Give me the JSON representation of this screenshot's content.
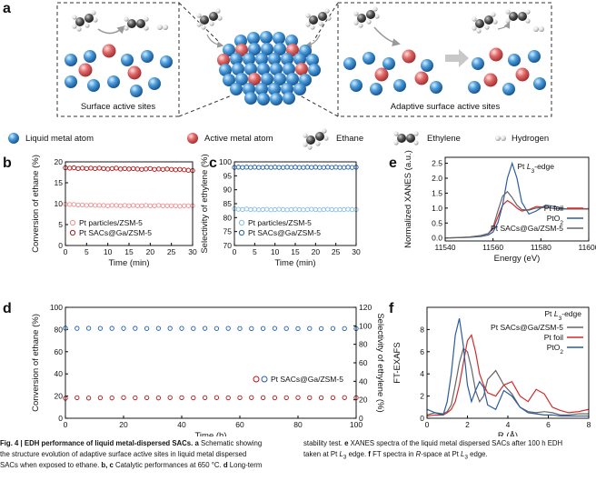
{
  "panel_a": {
    "label": "a",
    "left_box": "Surface active sites",
    "right_box": "Adaptive surface active sites",
    "legend": [
      "Liquid metal atom",
      "Active metal atom",
      "Ethane",
      "Ethylene",
      "Hydrogen"
    ]
  },
  "chart_data": [
    {
      "type": "scatter",
      "label": "b",
      "x_label": "Time (min)",
      "y_label": "Conversion of ethane (%)",
      "x": [
        0,
        1,
        2,
        3,
        4,
        5,
        6,
        7,
        8,
        9,
        10,
        11,
        12,
        13,
        14,
        15,
        16,
        17,
        18,
        19,
        20,
        21,
        22,
        23,
        24,
        25,
        26,
        27,
        28,
        29,
        30
      ],
      "xlim": [
        0,
        30
      ],
      "xticks": [
        0,
        5,
        10,
        15,
        20,
        25,
        30
      ],
      "ylim": [
        0,
        20
      ],
      "yticks": [
        0,
        5,
        10,
        15,
        20
      ],
      "legend": "lower left",
      "series": [
        {
          "name": "Pt particles/ZSM-5",
          "color": "#f08f8f",
          "values": [
            9.9,
            9.8,
            9.8,
            9.7,
            9.7,
            9.6,
            9.7,
            9.6,
            9.6,
            9.6,
            9.5,
            9.6,
            9.6,
            9.5,
            9.6,
            9.5,
            9.6,
            9.5,
            9.5,
            9.6,
            9.5,
            9.5,
            9.6,
            9.5,
            9.5,
            9.5,
            9.5,
            9.4,
            9.5,
            9.5,
            9.5
          ]
        },
        {
          "name": "Pt SACs@Ga/ZSM-5",
          "color": "#b81414",
          "values": [
            18.6,
            18.5,
            18.6,
            18.4,
            18.5,
            18.4,
            18.5,
            18.4,
            18.5,
            18.4,
            18.3,
            18.4,
            18.5,
            18.3,
            18.4,
            18.3,
            18.4,
            18.3,
            18.2,
            18.3,
            18.4,
            18.2,
            18.3,
            18.2,
            18.3,
            18.2,
            18.1,
            18.2,
            18.1,
            18.0,
            17.9
          ]
        }
      ]
    },
    {
      "type": "scatter",
      "label": "c",
      "x_label": "Time (min)",
      "y_label": "Selectivity of ethylene (%)",
      "x": [
        0,
        1,
        2,
        3,
        4,
        5,
        6,
        7,
        8,
        9,
        10,
        11,
        12,
        13,
        14,
        15,
        16,
        17,
        18,
        19,
        20,
        21,
        22,
        23,
        24,
        25,
        26,
        27,
        28,
        29,
        30
      ],
      "xlim": [
        0,
        30
      ],
      "xticks": [
        0,
        5,
        10,
        15,
        20,
        25,
        30
      ],
      "ylim": [
        70,
        100
      ],
      "yticks": [
        70,
        75,
        80,
        85,
        90,
        95,
        100
      ],
      "legend": "lower left",
      "series": [
        {
          "name": "Pt particles/ZSM-5",
          "color": "#86bde3",
          "values": [
            83.2,
            83.0,
            82.9,
            83.1,
            82.9,
            83.0,
            82.8,
            82.9,
            83.0,
            82.8,
            82.9,
            83.0,
            82.9,
            82.8,
            82.9,
            83.0,
            82.9,
            82.8,
            82.9,
            83.0,
            82.9,
            82.8,
            82.9,
            83.0,
            82.9,
            82.8,
            82.9,
            82.9,
            83.0,
            82.9,
            82.9
          ]
        },
        {
          "name": "Pt SACs@Ga/ZSM-5",
          "color": "#1f5fa8",
          "values": [
            98.0,
            98.1,
            98.0,
            98.1,
            98.0,
            98.1,
            98.0,
            98.0,
            98.1,
            98.0,
            98.1,
            98.0,
            98.0,
            98.1,
            98.0,
            98.1,
            98.0,
            98.0,
            98.1,
            98.0,
            98.1,
            98.0,
            98.0,
            98.1,
            98.0,
            98.1,
            98.0,
            98.0,
            98.1,
            98.0,
            98.1
          ]
        }
      ]
    },
    {
      "type": "line",
      "label": "e",
      "x_label": "Energy (eV)",
      "y_label": "Normalized XANES (a.u.)",
      "annotation": [
        "Pt",
        "L",
        "3",
        "-edge"
      ],
      "x": [
        11540,
        11545,
        11550,
        11555,
        11558,
        11560,
        11562,
        11564,
        11566,
        11568,
        11570,
        11572,
        11575,
        11578,
        11582,
        11586,
        11590,
        11595,
        11600
      ],
      "xlim": [
        11540,
        11600
      ],
      "xticks": [
        11540,
        11560,
        11580,
        11600
      ],
      "ylim": [
        -0.1,
        2.7
      ],
      "yticks": [
        {
          "value": 0,
          "label": "0.0"
        },
        0.5,
        {
          "value": 1,
          "label": "1.0"
        },
        1.5,
        {
          "value": 2,
          "label": "2.0"
        },
        2.5
      ],
      "legend": "lower right",
      "series": [
        {
          "name": "Pt foil",
          "color": "#d42a2a",
          "values": [
            0,
            0.01,
            0.03,
            0.08,
            0.15,
            0.3,
            0.7,
            1.1,
            1.25,
            1.15,
            1.0,
            0.9,
            0.95,
            1.05,
            1.03,
            0.98,
            0.97,
            0.98,
            0.98
          ]
        },
        {
          "name": "PtO2",
          "color": "#2b5c9e",
          "values": [
            0,
            0.01,
            0.02,
            0.05,
            0.1,
            0.2,
            0.5,
            1.1,
            2.0,
            2.5,
            2.0,
            1.2,
            0.8,
            0.9,
            1.1,
            1.05,
            0.98,
            0.97,
            0.97
          ]
        },
        {
          "name": "Pt SACs@Ga/ZSM-5",
          "color": "#666666",
          "values": [
            0,
            0.01,
            0.03,
            0.08,
            0.15,
            0.35,
            0.9,
            1.4,
            1.55,
            1.35,
            1.1,
            0.95,
            0.93,
            1.0,
            1.02,
            0.98,
            0.97,
            0.97,
            0.97
          ]
        }
      ]
    },
    {
      "type": "scatter",
      "label": "d",
      "x_label": "Time (h)",
      "y_label": "Conversion of ethane (%)",
      "y2_label": "Selectivity of ethylene (%)",
      "x": [
        0,
        4,
        8,
        12,
        16,
        20,
        24,
        28,
        32,
        36,
        40,
        44,
        48,
        52,
        56,
        60,
        64,
        68,
        72,
        76,
        80,
        84,
        88,
        92,
        96,
        100
      ],
      "xlim": [
        0,
        100
      ],
      "xticks": [
        0,
        20,
        40,
        60,
        80,
        100
      ],
      "ylim": [
        0,
        100
      ],
      "yticks": [
        0,
        20,
        40,
        60,
        80,
        100
      ],
      "y2lim": [
        0,
        120
      ],
      "y2ticks": [
        0,
        20,
        40,
        60,
        80,
        100,
        120
      ],
      "legend": "center right",
      "legend_label": "Pt SACs@Ga/ZSM-5",
      "series": [
        {
          "color": "#b81414",
          "values": [
            18.0,
            18.5,
            18.2,
            18.4,
            18.3,
            18.6,
            18.4,
            18.5,
            18.3,
            18.6,
            18.5,
            18.4,
            18.5,
            18.6,
            18.4,
            18.5,
            18.6,
            18.5,
            18.4,
            18.5,
            18.6,
            18.5,
            18.4,
            18.5,
            18.6,
            18.5
          ]
        },
        {
          "color": "#1f5fa8",
          "axis": "y2",
          "values": [
            97.5,
            97.3,
            97.4,
            97.2,
            97.3,
            97.2,
            97.3,
            97.1,
            97.2,
            97.3,
            97.2,
            97.1,
            97.2,
            97.1,
            97.2,
            97.1,
            97.0,
            97.1,
            97.2,
            97.1,
            97.0,
            97.1,
            97.0,
            97.1,
            97.0,
            97.0
          ]
        }
      ]
    },
    {
      "type": "line",
      "label": "f",
      "x_label": "R (Å)",
      "y_label": "FT-EXAFS",
      "annotation": [
        "Pt",
        "L",
        "3",
        "-edge"
      ],
      "x": [
        0,
        0.4,
        0.8,
        1.0,
        1.2,
        1.4,
        1.6,
        1.8,
        2.0,
        2.2,
        2.4,
        2.6,
        2.8,
        3.0,
        3.4,
        3.8,
        4.2,
        4.6,
        5.0,
        5.4,
        5.8,
        6.2,
        6.6,
        7.0,
        7.5,
        8.0
      ],
      "xlim": [
        0,
        8
      ],
      "xticks": [
        0,
        2,
        4,
        6,
        8
      ],
      "ylim": [
        0,
        10
      ],
      "yticks": [
        0,
        2,
        4,
        6,
        8
      ],
      "legend": "upper right",
      "series": [
        {
          "name": "Pt SACs@Ga/ZSM-5",
          "color": "#666666",
          "values": [
            0.3,
            0.5,
            0.4,
            0.6,
            1.2,
            3,
            5,
            6.3,
            6,
            4.5,
            2.5,
            1.5,
            2,
            3.5,
            4.3,
            3,
            2.2,
            1.0,
            0.6,
            0.5,
            0.6,
            0.5,
            0.3,
            0.3,
            0.4,
            0.4
          ]
        },
        {
          "name": "Pt foil",
          "color": "#d42a2a",
          "values": [
            0.2,
            0.3,
            0.3,
            0.5,
            0.8,
            1.5,
            3,
            5,
            7,
            7.5,
            6,
            4,
            3,
            2.3,
            2,
            3,
            3.3,
            2,
            1.5,
            2.6,
            2.2,
            1.0,
            0.7,
            0.5,
            0.6,
            0.8
          ]
        },
        {
          "name": "PtO2",
          "color": "#2b5c9e",
          "values": [
            0.8,
            0.5,
            0.3,
            1.5,
            4,
            7.5,
            9,
            6.5,
            3,
            1.5,
            2.5,
            3.3,
            2.8,
            1.2,
            0.8,
            2.5,
            2.0,
            1.0,
            0.5,
            0.4,
            0.3,
            0.3,
            0.2,
            0.2,
            0.2,
            0.2
          ]
        }
      ]
    }
  ],
  "caption": {
    "left": [
      [
        "Fig. 4 | EDH performance of liquid metal-dispersed SACs.",
        "a",
        "Schematic showing"
      ],
      [
        "the structure evolution of adaptive surface active sites in liquid metal dispersed"
      ],
      [
        "SACs when exposed to ethane.",
        "b, c",
        "Catalytic performances at 650 °C.",
        "d",
        "Long-term"
      ]
    ],
    "right": [
      [
        "stability test.",
        "e",
        "XANES spectra of the liquid metal dispersed SACs after 100 h EDH"
      ],
      [
        "taken at Pt",
        "L",
        "3",
        "edge.",
        "f",
        "FT spectra in",
        "R",
        "-space at Pt",
        "L",
        "3",
        "edge."
      ]
    ]
  }
}
